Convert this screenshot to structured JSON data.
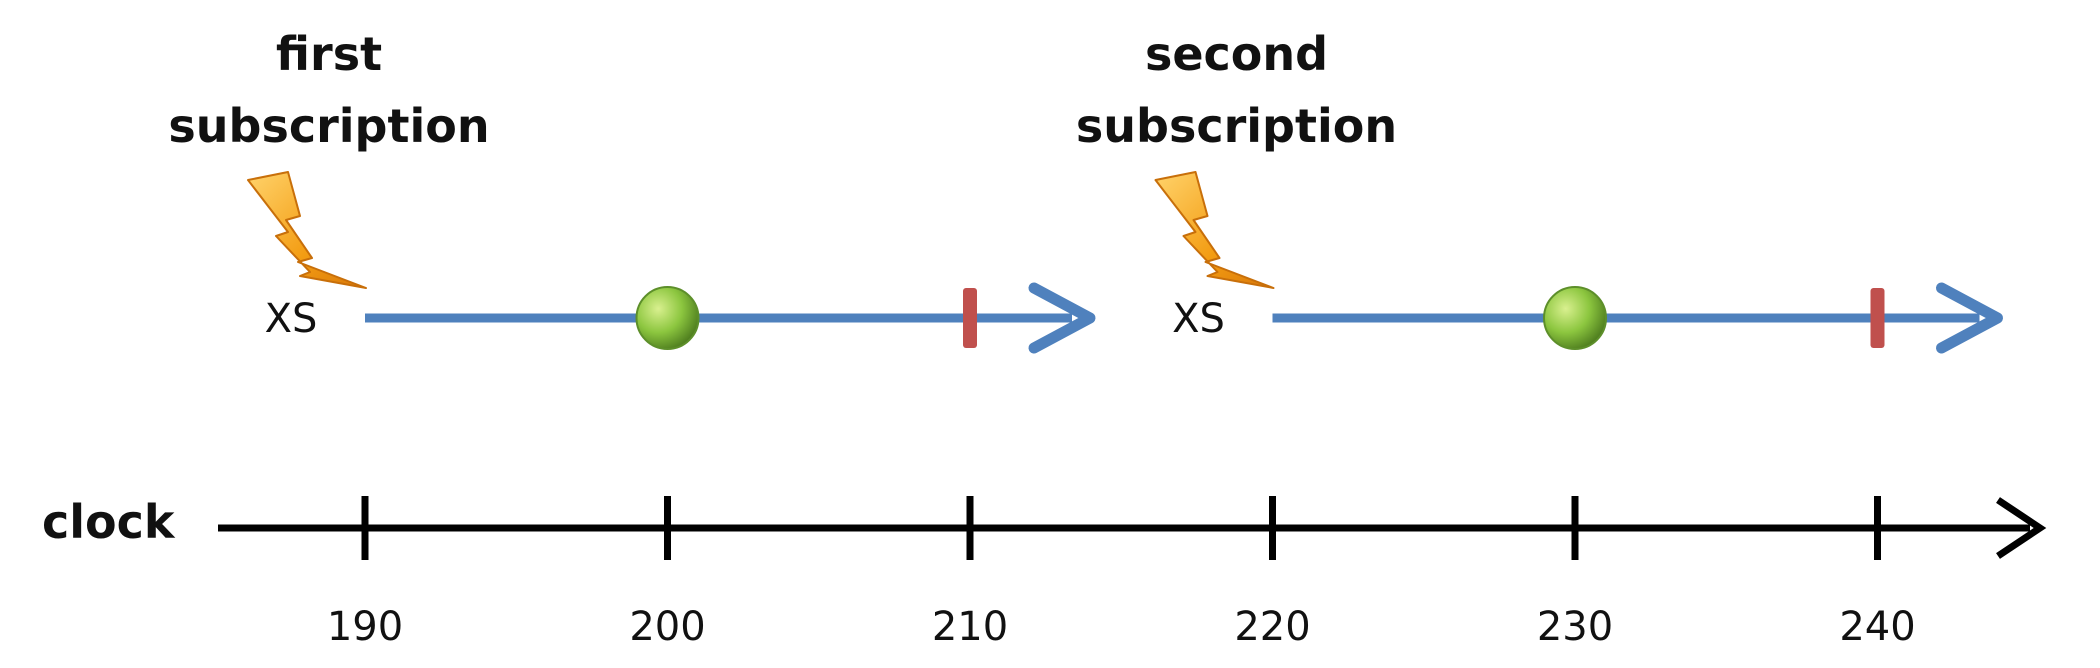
{
  "clock": {
    "label": "clock",
    "ticks": [
      190,
      200,
      210,
      220,
      230,
      240
    ]
  },
  "subscriptions": [
    {
      "title_line1": "first",
      "title_line2": "subscription",
      "source_label": "XS",
      "start": 190,
      "value_at": 200,
      "complete_at": 210
    },
    {
      "title_line1": "second",
      "title_line2": "subscription",
      "source_label": "XS",
      "start": 220,
      "value_at": 230,
      "complete_at": 240
    }
  ],
  "colors": {
    "timeline": "#4f81bd",
    "value_marble": "#7cb342",
    "completion_mark": "#c0504d",
    "lightning": "#f39c12",
    "clock_axis": "#000000"
  }
}
